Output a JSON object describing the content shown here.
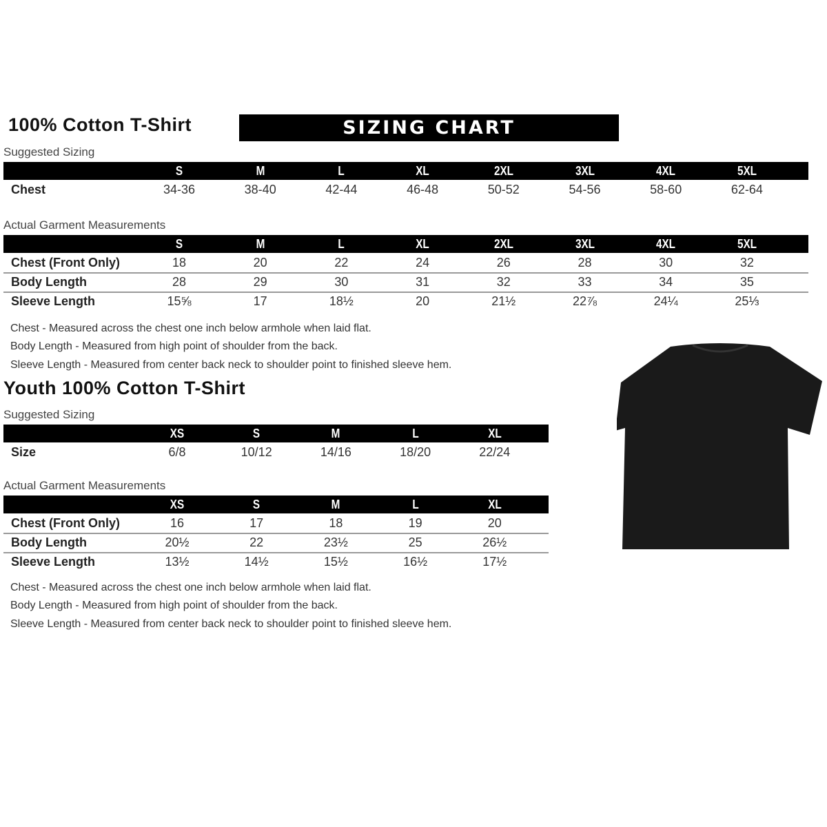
{
  "adult": {
    "title": "100% Cotton T-Shirt",
    "banner": "SIZING CHART",
    "suggested_label": "Suggested Sizing",
    "sizes": [
      "S",
      "M",
      "L",
      "XL",
      "2XL",
      "3XL",
      "4XL",
      "5XL"
    ],
    "suggested_rows": [
      {
        "label": "Chest",
        "values": [
          "34-36",
          "38-40",
          "42-44",
          "46-48",
          "50-52",
          "54-56",
          "58-60",
          "62-64"
        ]
      }
    ],
    "actual_label": "Actual Garment Measurements",
    "actual_rows": [
      {
        "label": "Chest (Front Only)",
        "values": [
          "18",
          "20",
          "22",
          "24",
          "26",
          "28",
          "30",
          "32"
        ]
      },
      {
        "label": "Body Length",
        "values": [
          "28",
          "29",
          "30",
          "31",
          "32",
          "33",
          "34",
          "35"
        ]
      },
      {
        "label": "Sleeve Length",
        "values": [
          "15⅝",
          "17",
          "18½",
          "20",
          "21½",
          "22⅞",
          "24¼",
          "25⅓"
        ]
      }
    ],
    "notes": [
      "Chest - Measured across the chest one inch below armhole when laid flat.",
      "Body Length - Measured from high point of shoulder from the back.",
      "Sleeve Length - Measured from center back neck to shoulder point to finished sleeve hem."
    ]
  },
  "youth": {
    "title": "Youth 100% Cotton T-Shirt",
    "suggested_label": "Suggested Sizing",
    "sizes": [
      "XS",
      "S",
      "M",
      "L",
      "XL"
    ],
    "suggested_rows": [
      {
        "label": "Size",
        "values": [
          "6/8",
          "10/12",
          "14/16",
          "18/20",
          "22/24"
        ]
      }
    ],
    "actual_label": "Actual Garment Measurements",
    "actual_rows": [
      {
        "label": "Chest (Front Only)",
        "values": [
          "16",
          "17",
          "18",
          "19",
          "20"
        ]
      },
      {
        "label": "Body Length",
        "values": [
          "20½",
          "22",
          "23½",
          "25",
          "26½"
        ]
      },
      {
        "label": "Sleeve Length",
        "values": [
          "13½",
          "14½",
          "15½",
          "16½",
          "17½"
        ]
      }
    ],
    "notes": [
      "Chest - Measured across the chest one inch below armhole when laid flat.",
      "Body Length - Measured from high point of shoulder from the back.",
      "Sleeve Length - Measured from center back neck to shoulder point to finished sleeve hem."
    ]
  },
  "image": {
    "icon": "black-tshirt",
    "color": "#1a1a1a"
  }
}
